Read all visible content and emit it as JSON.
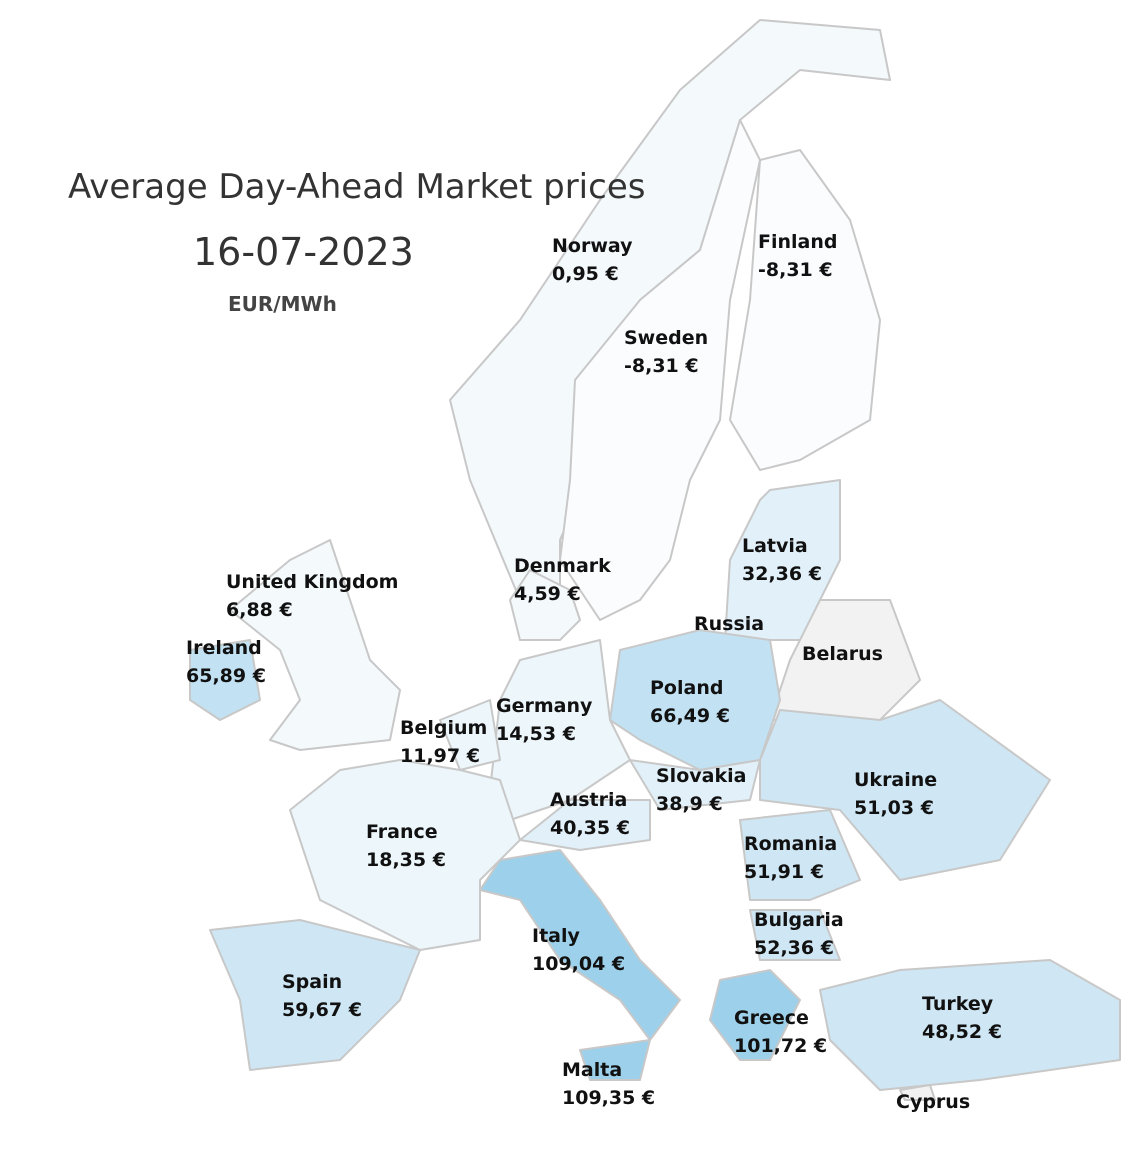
{
  "header": {
    "title": "Average Day-Ahead Market prices",
    "date": "16-07-2023",
    "unit": "EUR/MWh"
  },
  "countries": [
    {
      "name": "Norway",
      "price": "0,95 €",
      "color": "#f4f9fc"
    },
    {
      "name": "Finland",
      "price": "-8,31 €",
      "color": "#fafcfe"
    },
    {
      "name": "Sweden",
      "price": "-8,31 €",
      "color": "#fafcfe"
    },
    {
      "name": "Latvia",
      "price": "32,36 €",
      "color": "#e2f1f9"
    },
    {
      "name": "United Kingdom",
      "price": "6,88 €",
      "color": "#f4f9fc"
    },
    {
      "name": "Denmark",
      "price": "4,59 €",
      "color": "#f4f9fc"
    },
    {
      "name": "Russia",
      "color": "#f2f2f2"
    },
    {
      "name": "Ireland",
      "price": "65,89 €",
      "color": "#c2e2f3"
    },
    {
      "name": "Belarus",
      "color": "#f2f2f2"
    },
    {
      "name": "Poland",
      "price": "66,49 €",
      "color": "#c2e2f3"
    },
    {
      "name": "Germany",
      "price": "14,53 €",
      "color": "#edf6fb"
    },
    {
      "name": "Belgium",
      "price": "11,97 €",
      "color": "#edf6fb"
    },
    {
      "name": "Slovakia",
      "price": "38,9 €",
      "color": "#e2f1f9"
    },
    {
      "name": "Ukraine",
      "price": "51,03 €",
      "color": "#cfe7f4"
    },
    {
      "name": "Austria",
      "price": "40,35 €",
      "color": "#e2f1f9"
    },
    {
      "name": "France",
      "price": "18,35 €",
      "color": "#edf6fb"
    },
    {
      "name": "Romania",
      "price": "51,91 €",
      "color": "#cfe7f4"
    },
    {
      "name": "Bulgaria",
      "price": "52,36 €",
      "color": "#cfe7f4"
    },
    {
      "name": "Italy",
      "price": "109,04 €",
      "color": "#9dd0ea"
    },
    {
      "name": "Spain",
      "price": "59,67 €",
      "color": "#cfe7f4"
    },
    {
      "name": "Turkey",
      "price": "48,52 €",
      "color": "#cfe7f4"
    },
    {
      "name": "Greece",
      "price": "101,72 €",
      "color": "#9dd0ea"
    },
    {
      "name": "Malta",
      "price": "109,35 €",
      "color": "#9dd0ea"
    },
    {
      "name": "Cyprus",
      "color": "#f2f2f2"
    }
  ]
}
